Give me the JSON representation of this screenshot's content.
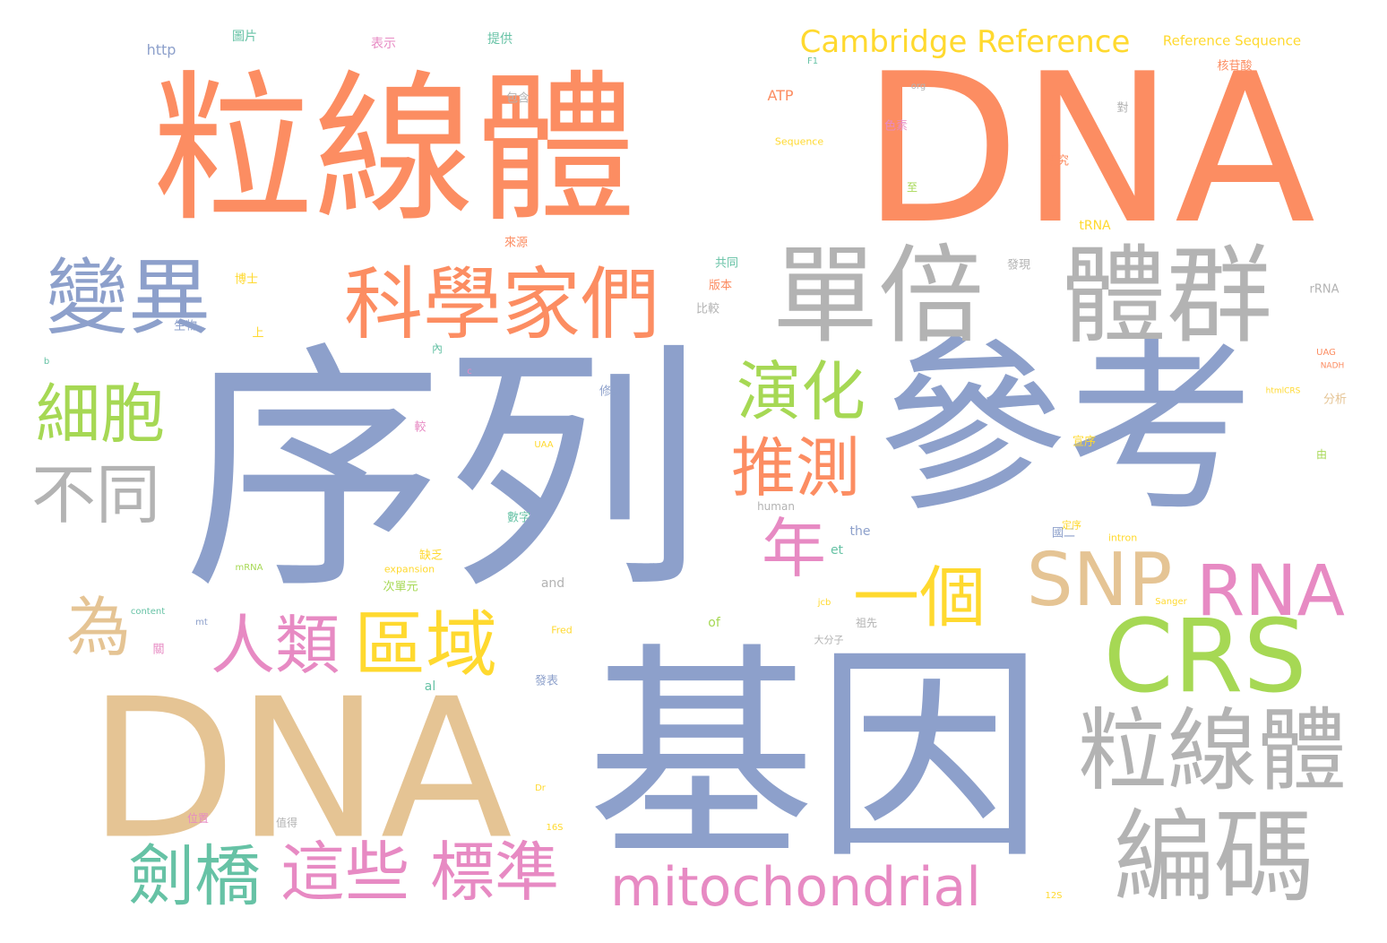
{
  "colors": {
    "orange": "#fc8d62",
    "blue": "#8da0cb",
    "tan": "#e5c494",
    "gray": "#b3b3b3",
    "green": "#a6d854",
    "teal": "#66c2a5",
    "pink": "#e78ac3",
    "yellow": "#ffd92f"
  },
  "words": [
    {
      "text": "粒線體",
      "color": "orange"
    },
    {
      "text": "DNA",
      "color": "orange"
    },
    {
      "text": "序列",
      "color": "blue"
    },
    {
      "text": "參考",
      "color": "blue"
    },
    {
      "text": "基因",
      "color": "blue"
    },
    {
      "text": "DNA",
      "color": "tan"
    },
    {
      "text": "單倍",
      "color": "gray"
    },
    {
      "text": "體群",
      "color": "gray"
    },
    {
      "text": "科學家們",
      "color": "orange"
    },
    {
      "text": "變異",
      "color": "blue"
    },
    {
      "text": "粒線體",
      "color": "gray"
    },
    {
      "text": "編碼",
      "color": "gray"
    },
    {
      "text": "CRS",
      "color": "green"
    },
    {
      "text": "細胞",
      "color": "green"
    },
    {
      "text": "演化",
      "color": "green"
    },
    {
      "text": "推測",
      "color": "orange"
    },
    {
      "text": "不同",
      "color": "gray"
    },
    {
      "text": "SNP",
      "color": "tan"
    },
    {
      "text": "RNA",
      "color": "pink"
    },
    {
      "text": "年",
      "color": "pink"
    },
    {
      "text": "一個",
      "color": "yellow"
    },
    {
      "text": "為",
      "color": "tan"
    },
    {
      "text": "人類",
      "color": "pink"
    },
    {
      "text": "區域",
      "color": "yellow"
    },
    {
      "text": "劍橋",
      "color": "teal"
    },
    {
      "text": "這些",
      "color": "pink"
    },
    {
      "text": "標準",
      "color": "pink"
    },
    {
      "text": "mitochondrial",
      "color": "pink"
    },
    {
      "text": "Cambridge Reference",
      "color": "yellow"
    },
    {
      "text": "Reference Sequence",
      "color": "yellow"
    },
    {
      "text": "http",
      "color": "blue"
    },
    {
      "text": "ATP",
      "color": "orange"
    },
    {
      "text": "Sequence",
      "color": "yellow"
    },
    {
      "text": "tRNA",
      "color": "yellow"
    },
    {
      "text": "rRNA",
      "color": "gray"
    },
    {
      "text": "human",
      "color": "gray"
    },
    {
      "text": "the",
      "color": "blue"
    },
    {
      "text": "et",
      "color": "teal"
    },
    {
      "text": "al",
      "color": "teal"
    },
    {
      "text": "and",
      "color": "gray"
    },
    {
      "text": "of",
      "color": "green"
    },
    {
      "text": "expansion",
      "color": "yellow"
    },
    {
      "text": "content",
      "color": "teal"
    },
    {
      "text": "mRNA",
      "color": "green"
    },
    {
      "text": "Fred",
      "color": "yellow"
    },
    {
      "text": "Sanger",
      "color": "yellow"
    },
    {
      "text": "jcb",
      "color": "yellow"
    },
    {
      "text": "intron",
      "color": "yellow"
    },
    {
      "text": "org",
      "color": "gray"
    },
    {
      "text": "UAG",
      "color": "orange"
    },
    {
      "text": "NADH",
      "color": "orange"
    },
    {
      "text": "htmlCRS",
      "color": "yellow"
    },
    {
      "text": "UAA",
      "color": "yellow"
    },
    {
      "text": "Dr",
      "color": "yellow"
    },
    {
      "text": "16S",
      "color": "yellow"
    },
    {
      "text": "12S",
      "color": "yellow"
    },
    {
      "text": "F1",
      "color": "teal"
    },
    {
      "text": "mt",
      "color": "blue"
    },
    {
      "text": "b",
      "color": "teal"
    },
    {
      "text": "c",
      "color": "pink"
    },
    {
      "text": "提供",
      "color": "teal"
    },
    {
      "text": "圖片",
      "color": "teal"
    },
    {
      "text": "表示",
      "color": "pink"
    },
    {
      "text": "包含",
      "color": "gray"
    },
    {
      "text": "色素",
      "color": "pink"
    },
    {
      "text": "研究",
      "color": "orange"
    },
    {
      "text": "核苷酸",
      "color": "orange"
    },
    {
      "text": "發現",
      "color": "gray"
    },
    {
      "text": "來源",
      "color": "orange"
    },
    {
      "text": "共同",
      "color": "teal"
    },
    {
      "text": "版本",
      "color": "orange"
    },
    {
      "text": "比較",
      "color": "gray"
    },
    {
      "text": "博士",
      "color": "yellow"
    },
    {
      "text": "生物",
      "color": "blue"
    },
    {
      "text": "上",
      "color": "yellow"
    },
    {
      "text": "修訂",
      "color": "blue"
    },
    {
      "text": "宣序",
      "color": "yellow"
    },
    {
      "text": "分析",
      "color": "tan"
    },
    {
      "text": "數字",
      "color": "teal"
    },
    {
      "text": "缺乏",
      "color": "yellow"
    },
    {
      "text": "次單元",
      "color": "green"
    },
    {
      "text": "發表",
      "color": "blue"
    },
    {
      "text": "關",
      "color": "pink"
    },
    {
      "text": "祖先",
      "color": "gray"
    },
    {
      "text": "大分子",
      "color": "gray"
    },
    {
      "text": "國二",
      "color": "blue"
    },
    {
      "text": "對",
      "color": "gray"
    },
    {
      "text": "較",
      "color": "pink"
    },
    {
      "text": "位置",
      "color": "pink"
    },
    {
      "text": "定序",
      "color": "yellow"
    },
    {
      "text": "值得",
      "color": "gray"
    },
    {
      "text": "內",
      "color": "teal"
    },
    {
      "text": "至",
      "color": "green"
    },
    {
      "text": "由",
      "color": "green"
    }
  ]
}
